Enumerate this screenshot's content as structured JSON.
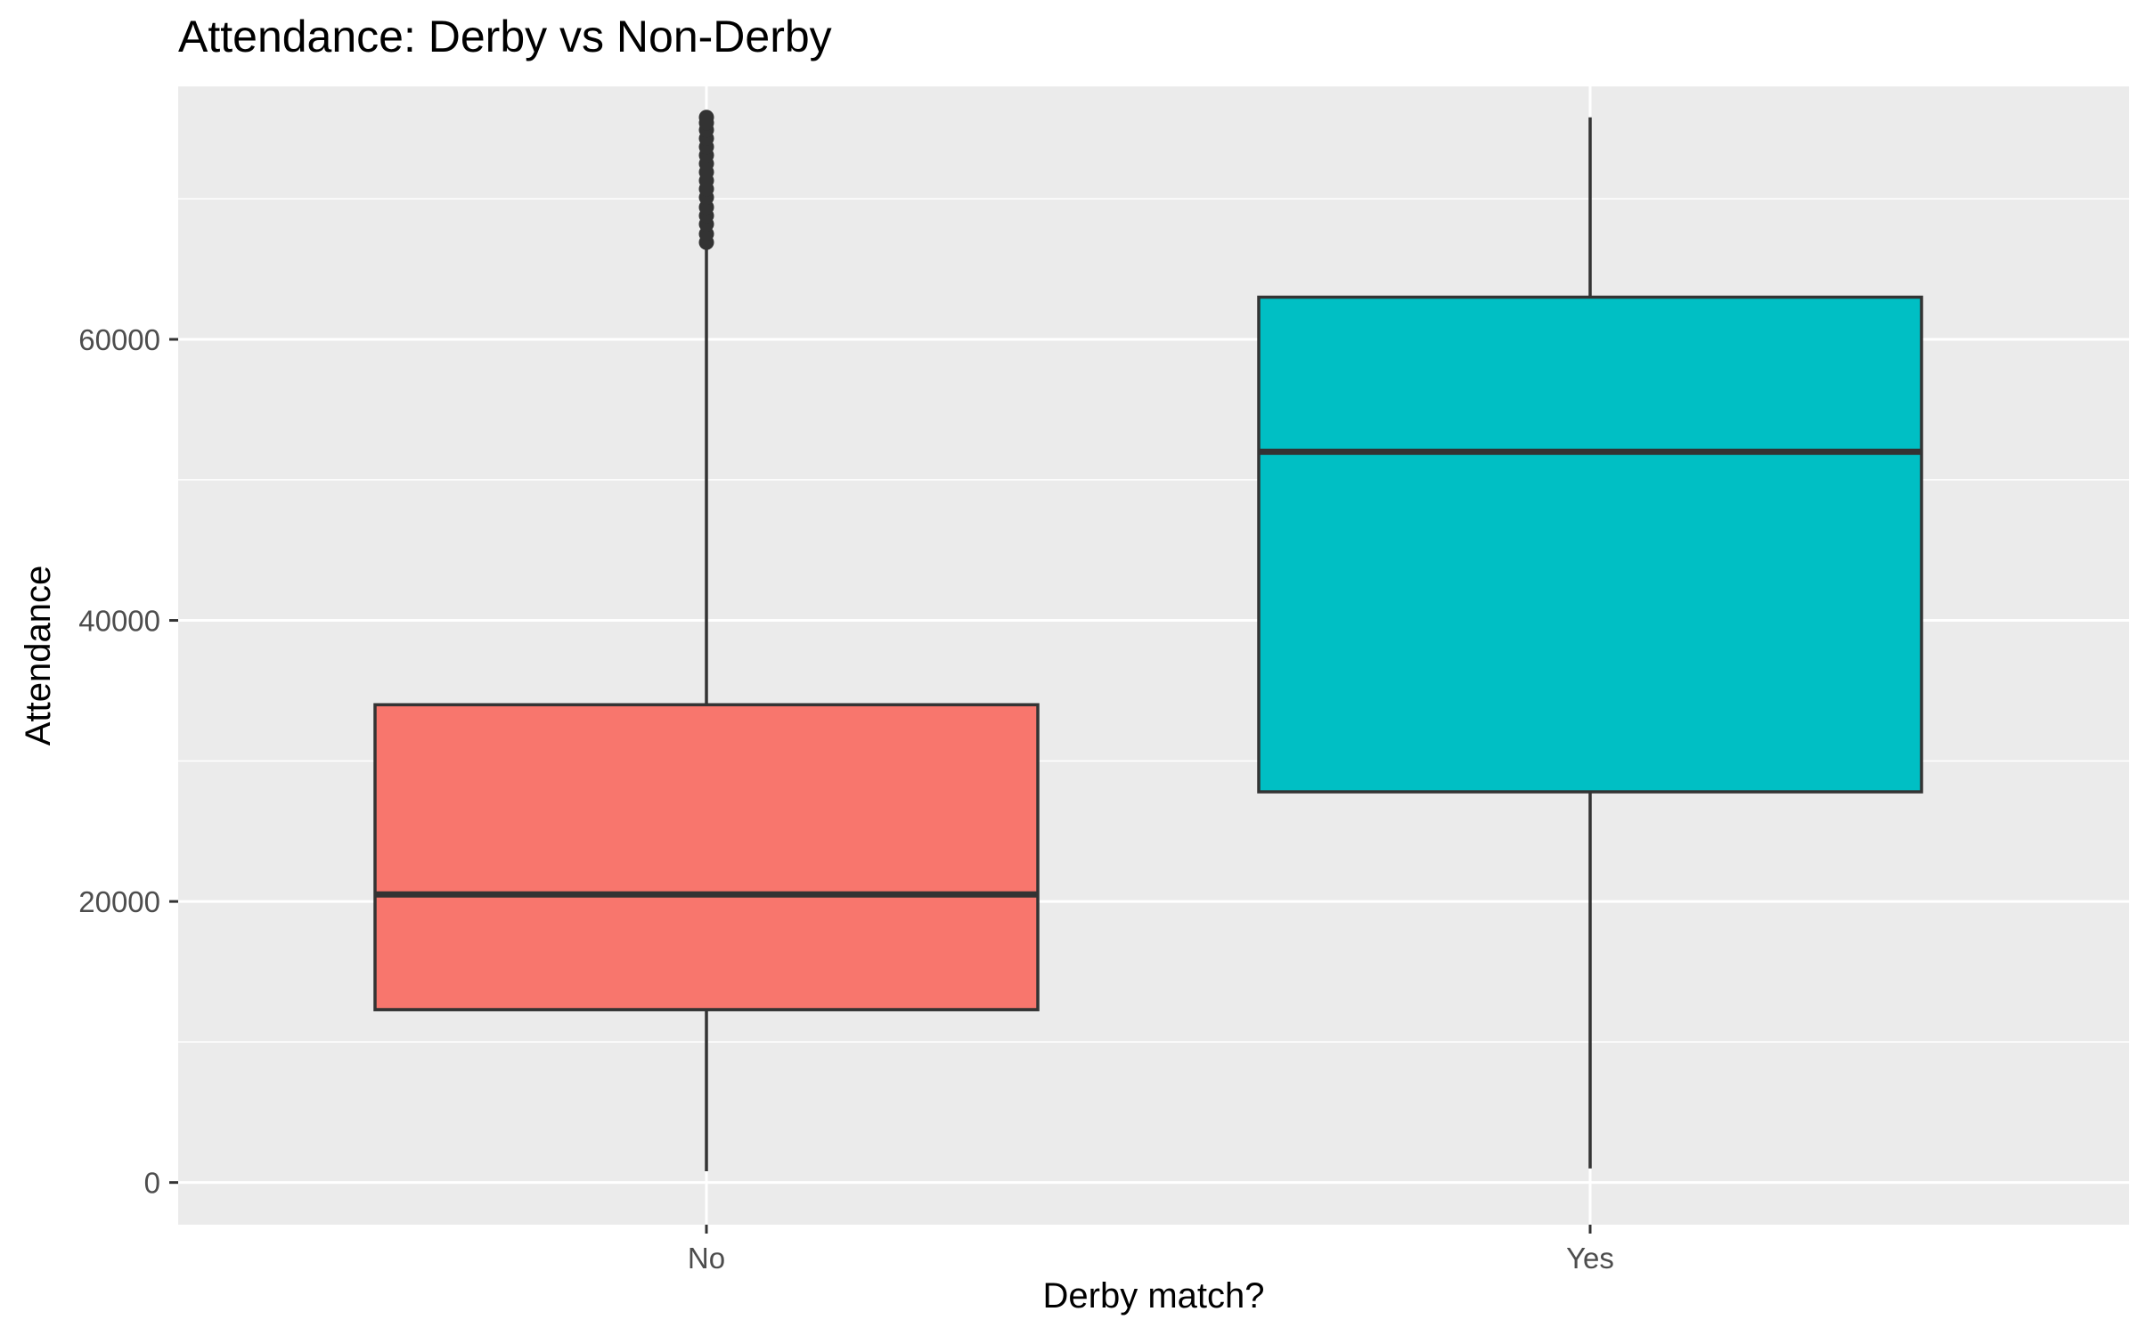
{
  "chart_data": {
    "type": "box",
    "title": "Attendance: Derby vs Non-Derby",
    "xlabel": "Derby match?",
    "ylabel": "Attendance",
    "categories": [
      "No",
      "Yes"
    ],
    "ylim": [
      -3000,
      78000
    ],
    "y_ticks": [
      0,
      20000,
      40000,
      60000
    ],
    "y_tick_labels": [
      "0",
      "20000",
      "40000",
      "60000"
    ],
    "grid": true,
    "legend": "none",
    "series": [
      {
        "category": "No",
        "min": 800,
        "q1": 12300,
        "median": 20500,
        "q3": 34000,
        "max": 66700,
        "outliers": [
          66900,
          67500,
          68200,
          68800,
          69400,
          70100,
          70700,
          71300,
          71900,
          72500,
          73100,
          73700,
          74300,
          74900,
          75400,
          75800
        ],
        "color": "#F8766D"
      },
      {
        "category": "Yes",
        "min": 1000,
        "q1": 27800,
        "median": 52000,
        "q3": 63000,
        "max": 75800,
        "outliers": [],
        "color": "#00BFC4"
      }
    ],
    "colors": {
      "panel": "#EBEBEB",
      "grid": "#FFFFFF",
      "box_line": "#333333"
    }
  }
}
